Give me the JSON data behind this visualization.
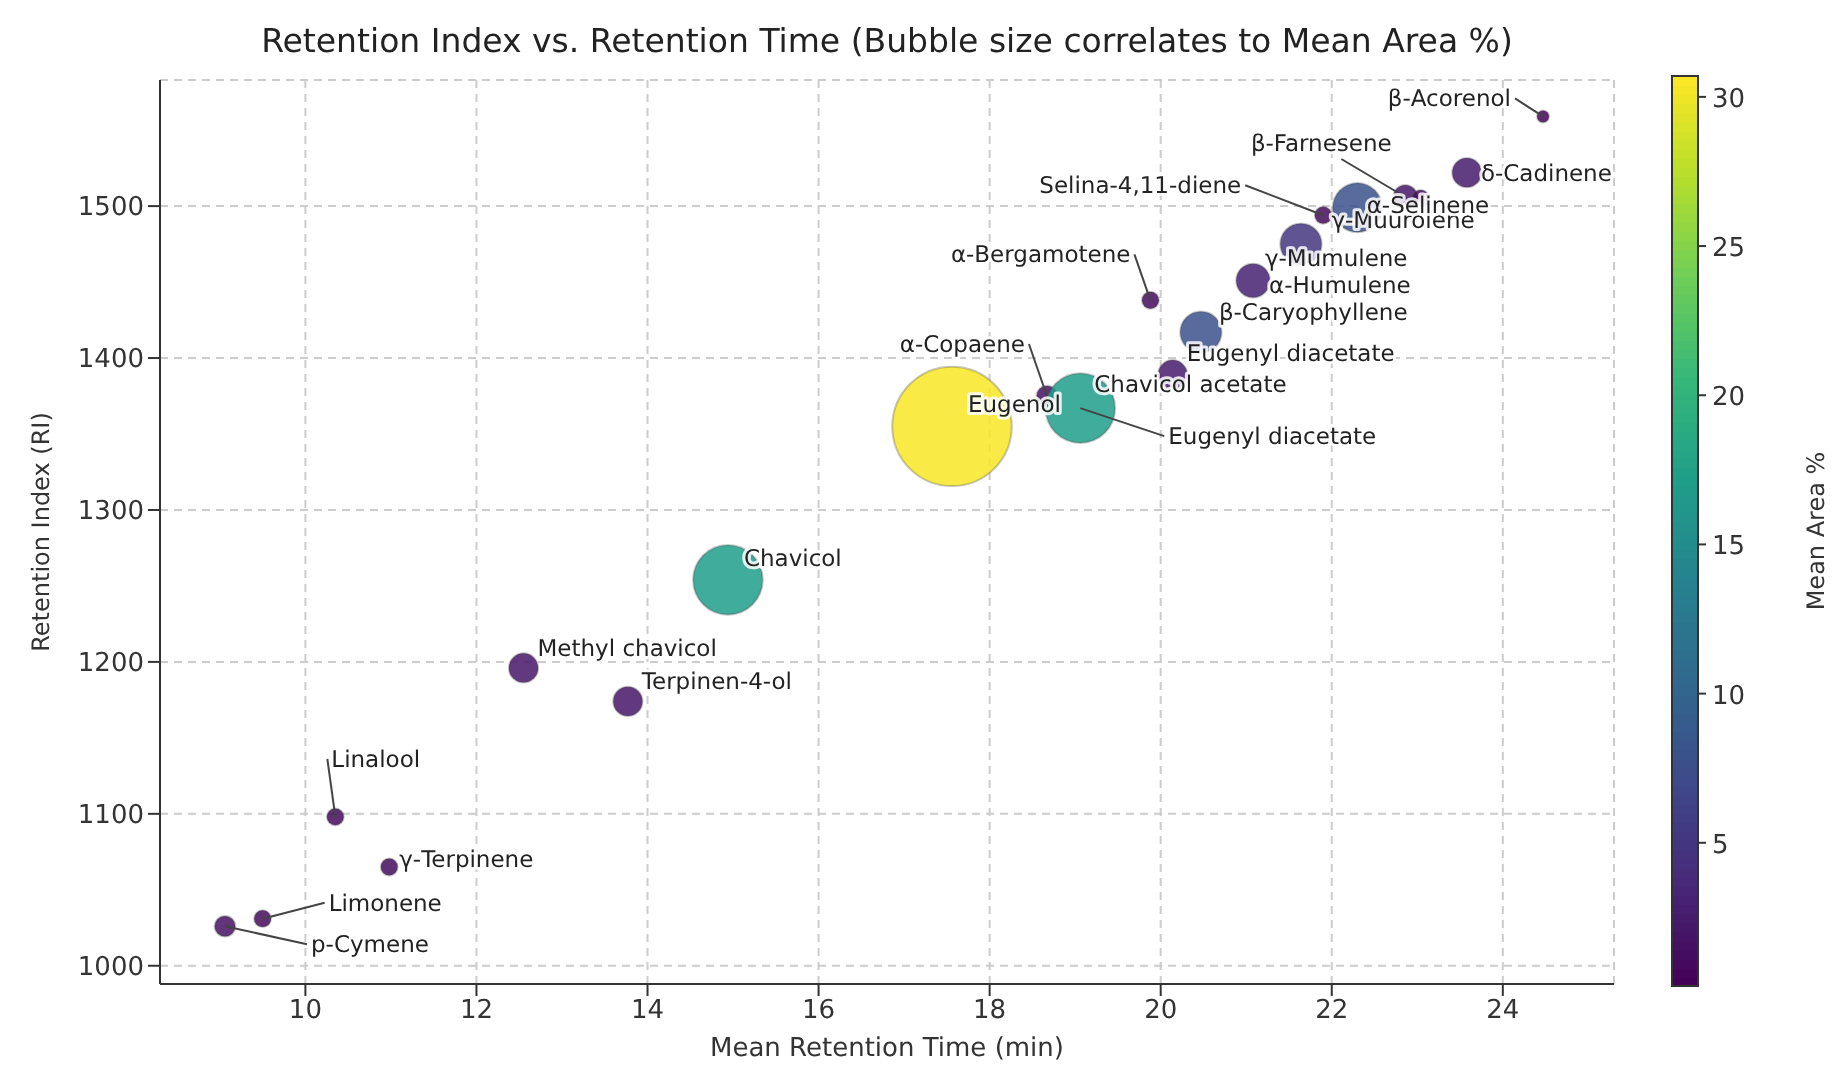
{
  "chart_data": {
    "type": "bubble",
    "title": "Retention Index vs. Retention Time (Bubble size correlates to Mean Area %)",
    "xlabel": "Mean Retention Time (min)",
    "ylabel": "Retention Index (RI)",
    "clabel": "Mean Area %",
    "x": [
      9.06,
      9.5,
      10.35,
      10.98,
      12.55,
      13.77,
      14.94,
      17.56,
      18.67,
      19.06,
      20.14,
      20.47,
      19.88,
      21.08,
      21.64,
      21.9,
      22.3,
      22.86,
      23.04,
      23.58,
      24.47
    ],
    "values": [
      1026,
      1031,
      1098,
      1065,
      1196,
      1174,
      1254,
      1355,
      1375,
      1367,
      1389,
      1417,
      1438,
      1451,
      1475,
      1494,
      1499,
      1506,
      1505,
      1522,
      1559
    ],
    "sizes": [
      0.03,
      0.02,
      0.02,
      0.02,
      0.06,
      0.06,
      0.34,
      1,
      0.03,
      0.34,
      0.06,
      0.12,
      0.02,
      0.08,
      0.12,
      0.02,
      0.17,
      0.04,
      0.02,
      0.06,
      0.01
    ],
    "cvalues": [
      1.5,
      1,
      1,
      1,
      2,
      2,
      17,
      30.5,
      1.5,
      17,
      2.5,
      8,
      1,
      3,
      5,
      1,
      8,
      2,
      1,
      2.5,
      0.5
    ],
    "clim": [
      0.2,
      30.7
    ],
    "cticks": [
      5,
      10,
      15,
      20,
      25,
      30
    ],
    "xlim": [
      8.3,
      25.3
    ],
    "xticks": [
      10,
      12,
      14,
      16,
      18,
      20,
      22,
      24
    ],
    "ylim": [
      988,
      1583
    ],
    "yticks": [
      1000,
      1100,
      1200,
      1300,
      1400,
      1500
    ],
    "grid": true,
    "annotations": [
      {
        "text": "p-Cymene",
        "x": 9.06,
        "y": 1026
      },
      {
        "text": "Limonene",
        "x": 9.5,
        "y": 1031
      },
      {
        "text": "Linalool",
        "x": 10.35,
        "y": 1098
      },
      {
        "text": "γ-Terpinene",
        "x": 10.98,
        "y": 1065
      },
      {
        "text": "Methyl chavicol",
        "x": 12.55,
        "y": 1196
      },
      {
        "text": "Terpinen-4-ol",
        "x": 13.77,
        "y": 1174
      },
      {
        "text": "Chavicol",
        "x": 14.94,
        "y": 1254
      },
      {
        "text": "Eugenol",
        "x": 17.56,
        "y": 1355
      },
      {
        "text": "α-Copaene",
        "x": 18.67,
        "y": 1375
      },
      {
        "text": "Chavicol acetate",
        "x": 19.06,
        "y": 1367
      },
      {
        "text": "Eugenyl diacetate",
        "x": 19.06,
        "y": 1367
      },
      {
        "text": "Eugenyl diacetate",
        "x": 20.14,
        "y": 1389
      },
      {
        "text": "β-Caryophyllene",
        "x": 20.47,
        "y": 1417
      },
      {
        "text": "α-Bergamotene",
        "x": 19.88,
        "y": 1438
      },
      {
        "text": "α-Humulene",
        "x": 21.08,
        "y": 1451
      },
      {
        "text": "γ-Mumulene",
        "x": 21.64,
        "y": 1475
      },
      {
        "text": "Selina-4,11-diene",
        "x": 21.9,
        "y": 1494
      },
      {
        "text": "γ-Muurolene",
        "x": 22.3,
        "y": 1499
      },
      {
        "text": "β-Farnesene",
        "x": 22.86,
        "y": 1506
      },
      {
        "text": "α-Selinene",
        "x": 23.04,
        "y": 1505
      },
      {
        "text": "δ-Cadinene",
        "x": 23.58,
        "y": 1522
      },
      {
        "text": "β-Acorenol",
        "x": 24.47,
        "y": 1559
      }
    ]
  }
}
